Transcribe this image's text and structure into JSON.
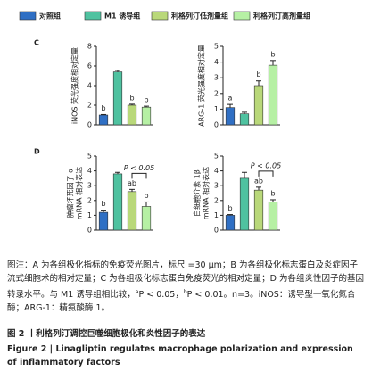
{
  "legend": [
    {
      "name": "对照组",
      "color": "#2f6fc4"
    },
    {
      "name": "M1 诱导组",
      "color": "#4fc2a0"
    },
    {
      "name": "利格列汀低剂量组",
      "color": "#b9d87a"
    },
    {
      "name": "利格列汀高剂量组",
      "color": "#b6f0a4"
    }
  ],
  "panels": [
    "C",
    "D"
  ],
  "chart_data": [
    {
      "type": "bar",
      "ylabel": [
        "iNOS 荧光强度相对定量"
      ],
      "values": [
        1.0,
        5.4,
        2.0,
        1.8
      ],
      "errors": [
        0.05,
        0.15,
        0.1,
        0.1
      ],
      "letters": [
        "b",
        null,
        "b",
        "b"
      ],
      "ylim": [
        0,
        8
      ],
      "yticks": [
        0,
        2,
        4,
        6,
        8
      ]
    },
    {
      "type": "bar",
      "ylabel": [
        "ARG-1 荧光强度相对定量"
      ],
      "values": [
        1.1,
        0.7,
        2.5,
        3.8
      ],
      "errors": [
        0.2,
        0.1,
        0.3,
        0.3
      ],
      "letters": [
        "a",
        null,
        "b",
        "b"
      ],
      "ylim": [
        0,
        5
      ],
      "yticks": [
        0,
        1,
        2,
        3,
        4,
        5
      ]
    },
    {
      "type": "bar",
      "ylabel": [
        "肿瘤坏死因子 α",
        "mRNA 相对表达"
      ],
      "values": [
        1.2,
        3.8,
        2.6,
        1.6
      ],
      "errors": [
        0.15,
        0.1,
        0.15,
        0.3
      ],
      "letters": [
        "b",
        null,
        "ab",
        "b"
      ],
      "annotation": "P < 0.05",
      "bracket": [
        2,
        3
      ],
      "ylim": [
        0,
        5
      ],
      "yticks": [
        0,
        1,
        2,
        3,
        4,
        5
      ]
    },
    {
      "type": "bar",
      "ylabel": [
        "白细胞介素 1β",
        "mRNA 相对表达"
      ],
      "values": [
        1.0,
        3.5,
        2.7,
        1.9
      ],
      "errors": [
        0.05,
        0.4,
        0.2,
        0.15
      ],
      "letters": [
        "b",
        null,
        "ab",
        "b"
      ],
      "annotation": "P < 0.05",
      "bracket": [
        2,
        3
      ],
      "ylim": [
        0,
        5
      ],
      "yticks": [
        0,
        1,
        2,
        3,
        4,
        5
      ]
    }
  ],
  "caption": [
    "图注：A 为各组极化指标的免疫荧光图片，标尺 =30 μm；B 为各组极化标志蛋白及炎症因子流式细胞术的相对定量；C 为各组极化标志蛋白免疫荧光的相对定量；D 为各组炎性因子的基因转录水平。与 M1 诱导组相比较，",
    "a",
    "P < 0.05，",
    "b",
    "P < 0.01。n=3。iNOS：诱导型一氧化氮合酶；ARG-1：精氨酸酶 1。"
  ],
  "figure_title": "图 2 丨利格列汀调控巨噬细胞极化和炎性因子的表达",
  "figure_title_en": "Figure 2 | Linagliptin regulates macrophage polarization and expression of inflammatory factors"
}
